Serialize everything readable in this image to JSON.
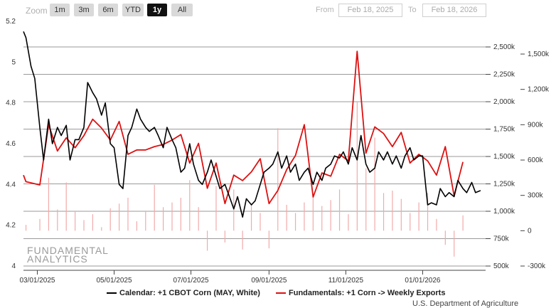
{
  "toolbar": {
    "zoom_label": "Zoom",
    "buttons": [
      "1m",
      "3m",
      "6m",
      "YTD",
      "1y",
      "All"
    ],
    "active": "1y",
    "from_label": "From",
    "from_value": "Feb 18, 2025",
    "to_label": "To",
    "to_value": "Feb 18, 2026"
  },
  "watermark": {
    "line1": "FUNDAMENTAL",
    "line2": "ANALYTICS"
  },
  "credit": "U.S. Department of Agriculture",
  "colors": {
    "price": "#000000",
    "exports": "#dd1111",
    "bars": "#f2aaaa",
    "grid": "#888888"
  },
  "chart_data": {
    "type": "line",
    "x_ticks": [
      "03/01/2025",
      "05/01/2025",
      "07/01/2025",
      "09/01/2025",
      "11/01/2025",
      "01/01/2026"
    ],
    "axes": {
      "left": {
        "ticks": [
          "5.2",
          "5",
          "4.8",
          "4.6",
          "4.4",
          "4.2",
          "4"
        ],
        "range": [
          4,
          5.2
        ]
      },
      "right1": {
        "ticks": [
          "2,500k",
          "2,250k",
          "2,000k",
          "1,750k",
          "1,500k",
          "1,250k",
          "1,000k",
          "750k",
          "500k"
        ],
        "range": [
          500,
          2500
        ]
      },
      "right2": {
        "ticks": [
          "1,500k",
          "1,200k",
          "900k",
          "600k",
          "300k",
          "0",
          "-300k"
        ],
        "range": [
          -300,
          1500
        ]
      }
    },
    "series": [
      {
        "name": "Calendar: +1 CBOT Corn (MAY, White)",
        "axis": "left",
        "points": [
          [
            "2025-02-18",
            5.15
          ],
          [
            "2025-02-20",
            5.12
          ],
          [
            "2025-02-24",
            4.98
          ],
          [
            "2025-02-27",
            4.92
          ],
          [
            "2025-03-03",
            4.68
          ],
          [
            "2025-03-06",
            4.52
          ],
          [
            "2025-03-10",
            4.72
          ],
          [
            "2025-03-13",
            4.6
          ],
          [
            "2025-03-17",
            4.68
          ],
          [
            "2025-03-20",
            4.64
          ],
          [
            "2025-03-24",
            4.69
          ],
          [
            "2025-03-27",
            4.52
          ],
          [
            "2025-03-31",
            4.62
          ],
          [
            "2025-04-03",
            4.62
          ],
          [
            "2025-04-07",
            4.68
          ],
          [
            "2025-04-10",
            4.9
          ],
          [
            "2025-04-14",
            4.85
          ],
          [
            "2025-04-17",
            4.82
          ],
          [
            "2025-04-21",
            4.74
          ],
          [
            "2025-04-24",
            4.8
          ],
          [
            "2025-04-28",
            4.6
          ],
          [
            "2025-05-01",
            4.58
          ],
          [
            "2025-05-05",
            4.4
          ],
          [
            "2025-05-08",
            4.38
          ],
          [
            "2025-05-12",
            4.64
          ],
          [
            "2025-05-15",
            4.68
          ],
          [
            "2025-05-19",
            4.77
          ],
          [
            "2025-05-22",
            4.72
          ],
          [
            "2025-05-26",
            4.68
          ],
          [
            "2025-05-29",
            4.66
          ],
          [
            "2025-06-02",
            4.68
          ],
          [
            "2025-06-05",
            4.64
          ],
          [
            "2025-06-09",
            4.58
          ],
          [
            "2025-06-12",
            4.68
          ],
          [
            "2025-06-16",
            4.62
          ],
          [
            "2025-06-19",
            4.58
          ],
          [
            "2025-06-23",
            4.46
          ],
          [
            "2025-06-26",
            4.48
          ],
          [
            "2025-06-30",
            4.6
          ],
          [
            "2025-07-03",
            4.5
          ],
          [
            "2025-07-07",
            4.42
          ],
          [
            "2025-07-10",
            4.4
          ],
          [
            "2025-07-14",
            4.46
          ],
          [
            "2025-07-17",
            4.52
          ],
          [
            "2025-07-21",
            4.44
          ],
          [
            "2025-07-24",
            4.38
          ],
          [
            "2025-07-28",
            4.4
          ],
          [
            "2025-07-31",
            4.35
          ],
          [
            "2025-08-04",
            4.28
          ],
          [
            "2025-08-07",
            4.34
          ],
          [
            "2025-08-11",
            4.24
          ],
          [
            "2025-08-14",
            4.33
          ],
          [
            "2025-08-18",
            4.3
          ],
          [
            "2025-08-21",
            4.32
          ],
          [
            "2025-08-25",
            4.4
          ],
          [
            "2025-08-28",
            4.46
          ],
          [
            "2025-09-01",
            4.48
          ],
          [
            "2025-09-04",
            4.5
          ],
          [
            "2025-09-08",
            4.56
          ],
          [
            "2025-09-11",
            4.48
          ],
          [
            "2025-09-15",
            4.54
          ],
          [
            "2025-09-18",
            4.46
          ],
          [
            "2025-09-22",
            4.5
          ],
          [
            "2025-09-25",
            4.42
          ],
          [
            "2025-09-29",
            4.46
          ],
          [
            "2025-10-02",
            4.48
          ],
          [
            "2025-10-06",
            4.4
          ],
          [
            "2025-10-09",
            4.46
          ],
          [
            "2025-10-13",
            4.42
          ],
          [
            "2025-10-16",
            4.48
          ],
          [
            "2025-10-20",
            4.5
          ],
          [
            "2025-10-23",
            4.54
          ],
          [
            "2025-10-27",
            4.53
          ],
          [
            "2025-10-30",
            4.56
          ],
          [
            "2025-11-03",
            4.5
          ],
          [
            "2025-11-06",
            4.58
          ],
          [
            "2025-11-10",
            4.52
          ],
          [
            "2025-11-13",
            4.64
          ],
          [
            "2025-11-17",
            4.5
          ],
          [
            "2025-11-20",
            4.46
          ],
          [
            "2025-11-24",
            4.48
          ],
          [
            "2025-11-27",
            4.56
          ],
          [
            "2025-12-01",
            4.52
          ],
          [
            "2025-12-04",
            4.56
          ],
          [
            "2025-12-08",
            4.5
          ],
          [
            "2025-12-11",
            4.54
          ],
          [
            "2025-12-15",
            4.48
          ],
          [
            "2025-12-18",
            4.54
          ],
          [
            "2025-12-22",
            4.58
          ],
          [
            "2025-12-25",
            4.52
          ],
          [
            "2025-12-29",
            4.54
          ],
          [
            "2026-01-01",
            4.54
          ],
          [
            "2026-01-05",
            4.3
          ],
          [
            "2026-01-08",
            4.31
          ],
          [
            "2026-01-12",
            4.3
          ],
          [
            "2026-01-15",
            4.38
          ],
          [
            "2026-01-19",
            4.34
          ],
          [
            "2026-01-22",
            4.36
          ],
          [
            "2026-01-26",
            4.34
          ],
          [
            "2026-01-29",
            4.42
          ],
          [
            "2026-02-02",
            4.38
          ],
          [
            "2026-02-05",
            4.36
          ],
          [
            "2026-02-09",
            4.41
          ],
          [
            "2026-02-12",
            4.36
          ],
          [
            "2026-02-16",
            4.37
          ]
        ]
      },
      {
        "name": "Fundamentals: +1 Corn -> Weekly Exports",
        "axis": "right1",
        "points": [
          [
            "2025-02-18",
            1330
          ],
          [
            "2025-02-20",
            1270
          ],
          [
            "2025-03-03",
            1240
          ],
          [
            "2025-03-10",
            1790
          ],
          [
            "2025-03-17",
            1550
          ],
          [
            "2025-03-24",
            1670
          ],
          [
            "2025-03-31",
            1580
          ],
          [
            "2025-04-07",
            1690
          ],
          [
            "2025-04-14",
            1840
          ],
          [
            "2025-04-21",
            1760
          ],
          [
            "2025-04-28",
            1650
          ],
          [
            "2025-05-05",
            1820
          ],
          [
            "2025-05-12",
            1520
          ],
          [
            "2025-05-19",
            1560
          ],
          [
            "2025-05-26",
            1560
          ],
          [
            "2025-06-02",
            1590
          ],
          [
            "2025-06-09",
            1610
          ],
          [
            "2025-06-16",
            1650
          ],
          [
            "2025-06-23",
            1700
          ],
          [
            "2025-06-30",
            1440
          ],
          [
            "2025-07-07",
            1620
          ],
          [
            "2025-07-14",
            1210
          ],
          [
            "2025-07-21",
            1440
          ],
          [
            "2025-07-28",
            1070
          ],
          [
            "2025-08-04",
            1330
          ],
          [
            "2025-08-11",
            1280
          ],
          [
            "2025-08-18",
            1360
          ],
          [
            "2025-08-25",
            1480
          ],
          [
            "2025-09-01",
            1070
          ],
          [
            "2025-09-08",
            1190
          ],
          [
            "2025-09-15",
            1380
          ],
          [
            "2025-09-22",
            1510
          ],
          [
            "2025-09-29",
            1790
          ],
          [
            "2025-10-06",
            1130
          ],
          [
            "2025-10-13",
            1350
          ],
          [
            "2025-10-20",
            1320
          ],
          [
            "2025-10-27",
            1520
          ],
          [
            "2025-11-03",
            1460
          ],
          [
            "2025-11-10",
            2460
          ],
          [
            "2025-11-17",
            1530
          ],
          [
            "2025-11-24",
            1770
          ],
          [
            "2025-12-01",
            1710
          ],
          [
            "2025-12-08",
            1590
          ],
          [
            "2025-12-15",
            1720
          ],
          [
            "2025-12-22",
            1440
          ],
          [
            "2025-12-29",
            1520
          ],
          [
            "2026-01-05",
            1460
          ],
          [
            "2026-01-12",
            1330
          ],
          [
            "2026-01-19",
            1590
          ],
          [
            "2026-01-26",
            1140
          ],
          [
            "2026-02-02",
            1450
          ]
        ]
      }
    ],
    "bars": {
      "axis": "right2",
      "points": [
        [
          "2025-02-20",
          50
        ],
        [
          "2025-03-03",
          100
        ],
        [
          "2025-03-10",
          450
        ],
        [
          "2025-03-17",
          180
        ],
        [
          "2025-03-24",
          410
        ],
        [
          "2025-03-31",
          160
        ],
        [
          "2025-04-07",
          90
        ],
        [
          "2025-04-14",
          140
        ],
        [
          "2025-04-21",
          30
        ],
        [
          "2025-04-28",
          190
        ],
        [
          "2025-05-05",
          230
        ],
        [
          "2025-05-12",
          280
        ],
        [
          "2025-05-19",
          80
        ],
        [
          "2025-05-26",
          170
        ],
        [
          "2025-06-02",
          390
        ],
        [
          "2025-06-09",
          200
        ],
        [
          "2025-06-16",
          240
        ],
        [
          "2025-06-23",
          280
        ],
        [
          "2025-06-30",
          430
        ],
        [
          "2025-07-07",
          200
        ],
        [
          "2025-07-14",
          -170
        ],
        [
          "2025-07-21",
          380
        ],
        [
          "2025-07-28",
          -100
        ],
        [
          "2025-08-04",
          350
        ],
        [
          "2025-08-11",
          -160
        ],
        [
          "2025-08-18",
          230
        ],
        [
          "2025-08-25",
          150
        ],
        [
          "2025-09-01",
          -150
        ],
        [
          "2025-09-08",
          870
        ],
        [
          "2025-09-15",
          220
        ],
        [
          "2025-09-22",
          150
        ],
        [
          "2025-09-29",
          240
        ],
        [
          "2025-10-06",
          290
        ],
        [
          "2025-10-13",
          210
        ],
        [
          "2025-10-20",
          260
        ],
        [
          "2025-10-27",
          350
        ],
        [
          "2025-11-03",
          140
        ],
        [
          "2025-11-10",
          1100
        ],
        [
          "2025-11-17",
          530
        ],
        [
          "2025-11-24",
          790
        ],
        [
          "2025-12-01",
          320
        ],
        [
          "2025-12-08",
          340
        ],
        [
          "2025-12-15",
          270
        ],
        [
          "2025-12-22",
          150
        ],
        [
          "2025-12-29",
          240
        ],
        [
          "2026-01-05",
          320
        ],
        [
          "2026-01-12",
          100
        ],
        [
          "2026-01-19",
          -120
        ],
        [
          "2026-01-26",
          -220
        ],
        [
          "2026-02-02",
          130
        ]
      ]
    },
    "grid": true,
    "legend_position": "bottom"
  }
}
